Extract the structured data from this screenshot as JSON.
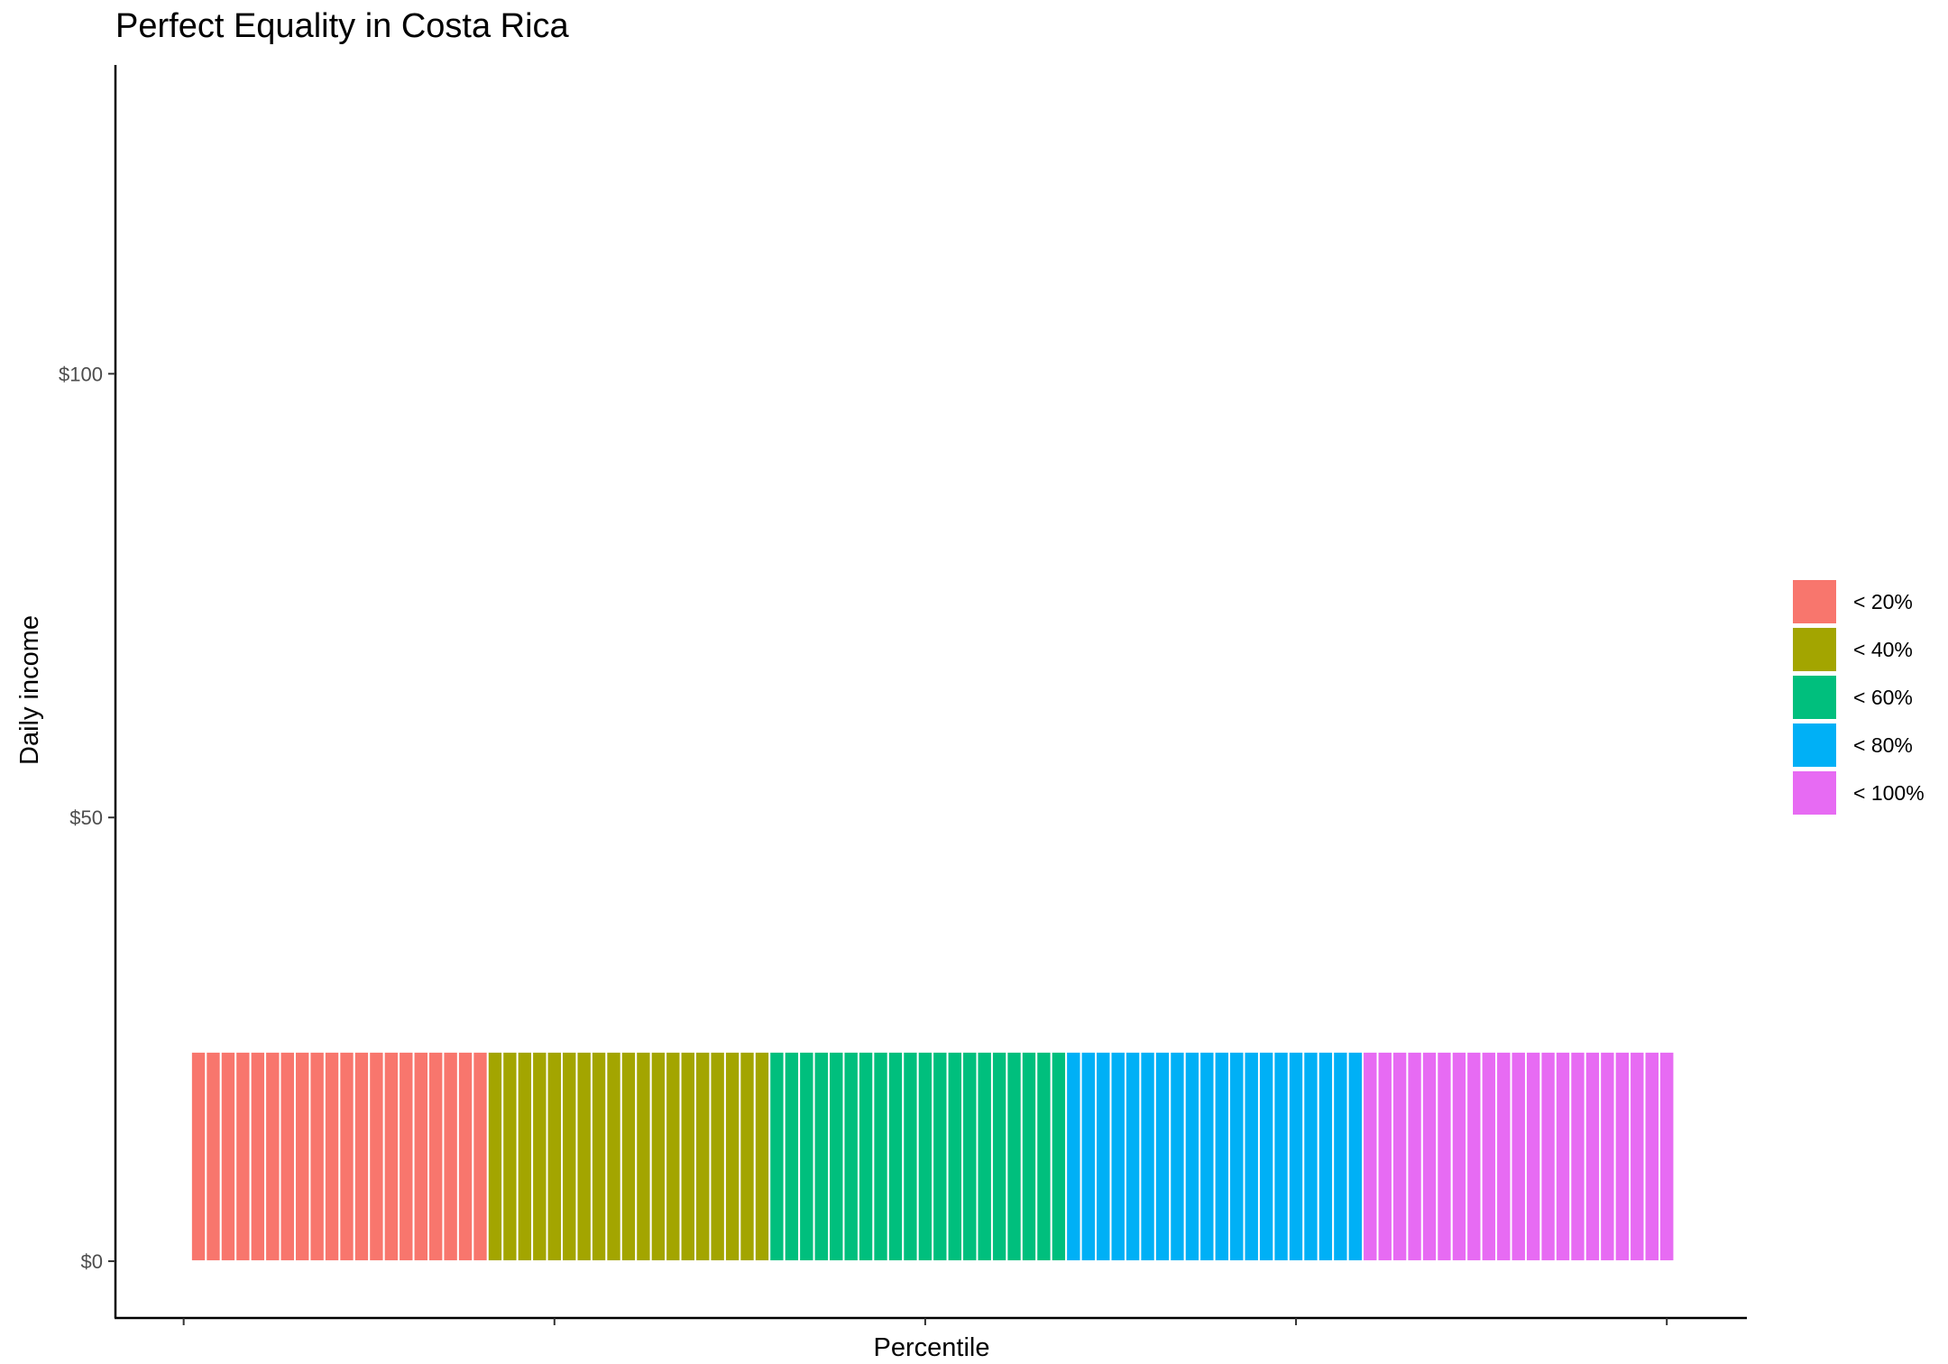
{
  "chart_data": {
    "type": "bar",
    "title": "Perfect Equality in Costa Rica",
    "xlabel": "Percentile",
    "ylabel": "Daily income",
    "y_ticks": [
      {
        "value": 0,
        "label": "$0"
      },
      {
        "value": 50,
        "label": "$50"
      },
      {
        "value": 100,
        "label": "$100"
      }
    ],
    "x_ticks": [
      0,
      25,
      50,
      75,
      100
    ],
    "xlim": [
      -4.6,
      105.4
    ],
    "ylim": [
      -6.4,
      134.8
    ],
    "bar_count": 100,
    "bar_value": 23.6,
    "legend_position": "right",
    "grid": false,
    "groups": [
      {
        "label": "< 20%",
        "color": "#F8766D",
        "from": 1,
        "to": 20
      },
      {
        "label": "< 40%",
        "color": "#A3A500",
        "from": 21,
        "to": 39
      },
      {
        "label": "< 60%",
        "color": "#00BF7D",
        "from": 40,
        "to": 59
      },
      {
        "label": "< 80%",
        "color": "#00B0F6",
        "from": 60,
        "to": 79
      },
      {
        "label": "< 100%",
        "color": "#E76BF3",
        "from": 80,
        "to": 100
      }
    ]
  }
}
